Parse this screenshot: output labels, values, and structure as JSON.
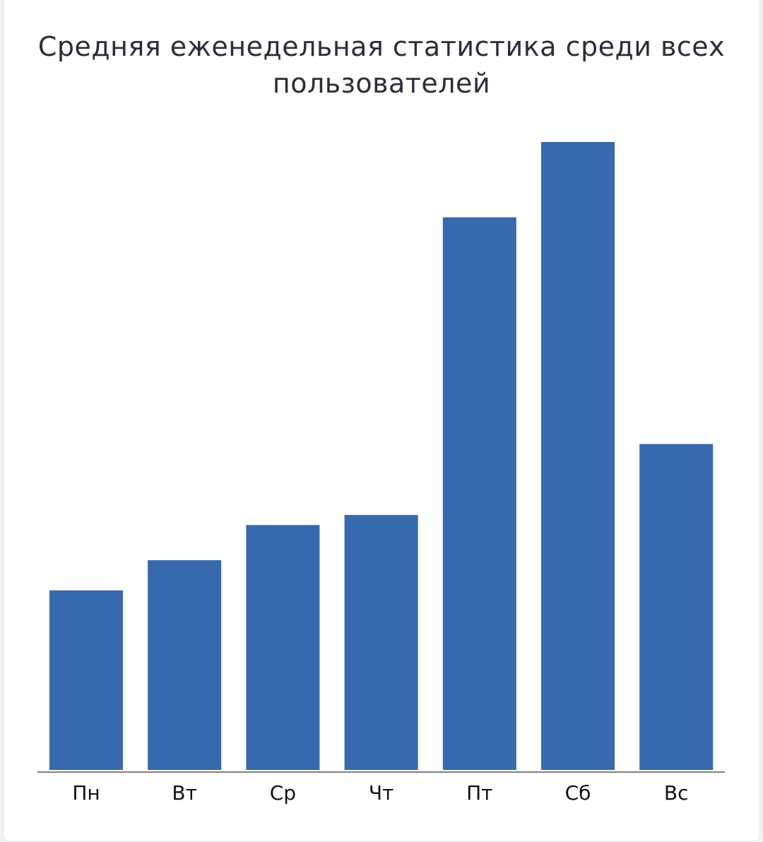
{
  "chart_data": {
    "type": "bar",
    "title": "Средняя еженедельная статистика среди всех пользователей",
    "categories": [
      "Пн",
      "Вт",
      "Ср",
      "Чт",
      "Пт",
      "Сб",
      "Вс"
    ],
    "values": [
      28.6,
      33.4,
      39.0,
      40.6,
      88.0,
      100,
      51.9
    ],
    "ylim": [
      0,
      100
    ],
    "y_axis_visible": false,
    "grid": false,
    "legend": "none",
    "colors": {
      "bar": "#3769ae",
      "axis": "#808080",
      "title": "#2a2e3a"
    }
  }
}
